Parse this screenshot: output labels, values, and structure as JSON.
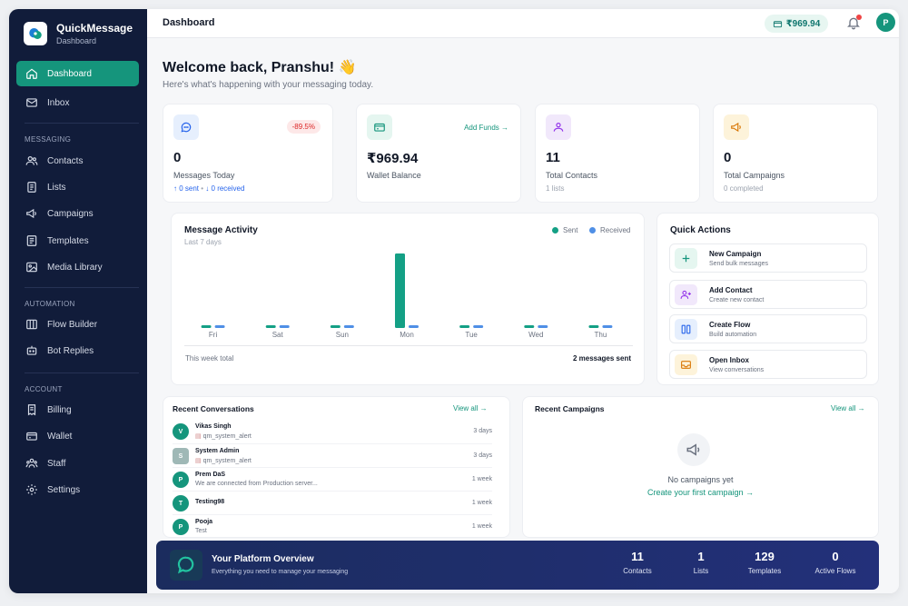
{
  "brand": {
    "name": "QuickMessage",
    "subtitle": "Dashboard"
  },
  "sidebar": {
    "items_top": [
      {
        "label": "Dashboard",
        "icon": "home-icon",
        "active": true
      },
      {
        "label": "Inbox",
        "icon": "inbox-icon"
      }
    ],
    "sections": [
      {
        "title": "MESSAGING",
        "items": [
          {
            "label": "Contacts",
            "icon": "users-icon"
          },
          {
            "label": "Lists",
            "icon": "list-icon"
          },
          {
            "label": "Campaigns",
            "icon": "megaphone-icon"
          },
          {
            "label": "Templates",
            "icon": "template-icon"
          },
          {
            "label": "Media Library",
            "icon": "image-icon"
          }
        ]
      },
      {
        "title": "AUTOMATION",
        "items": [
          {
            "label": "Flow Builder",
            "icon": "flow-icon"
          },
          {
            "label": "Bot Replies",
            "icon": "bot-icon"
          }
        ]
      },
      {
        "title": "ACCOUNT",
        "items": [
          {
            "label": "Billing",
            "icon": "billing-icon"
          },
          {
            "label": "Wallet",
            "icon": "wallet-icon"
          },
          {
            "label": "Staff",
            "icon": "staff-icon"
          },
          {
            "label": "Settings",
            "icon": "gear-icon"
          }
        ]
      }
    ]
  },
  "topbar": {
    "title": "Dashboard",
    "wallet": "₹969.94",
    "avatar": "P"
  },
  "welcome": {
    "title": "Welcome back, Pranshu! 👋",
    "subtitle": "Here's what's happening with your messaging today."
  },
  "stats": [
    {
      "value": "0",
      "label": "Messages Today",
      "sent": "↑ 0 sent",
      "separator": "•",
      "received": "↓ 0 received",
      "badge": "-89.5%",
      "icon": "chat-icon",
      "color": "#e6effd"
    },
    {
      "value": "₹969.94",
      "label": "Wallet Balance",
      "action": "Add Funds →",
      "icon": "wallet-icon",
      "color": "#e5f6f0"
    },
    {
      "value": "11",
      "label": "Total Contacts",
      "sub": "1 lists",
      "icon": "contacts-icon",
      "color": "#f1e8fb"
    },
    {
      "value": "0",
      "label": "Total Campaigns",
      "sub": "0 completed",
      "icon": "megaphone-icon",
      "color": "#fdf3da"
    }
  ],
  "activity": {
    "title": "Message Activity",
    "subtitle": "Last 7 days",
    "legend_sent": "Sent",
    "legend_received": "Received",
    "footer_left": "This week total",
    "footer_right": "2 messages sent"
  },
  "chart_data": {
    "type": "bar",
    "categories": [
      "Fri",
      "Sat",
      "Sun",
      "Mon",
      "Tue",
      "Wed",
      "Thu"
    ],
    "series": [
      {
        "name": "Sent",
        "values": [
          0,
          0,
          0,
          2,
          0,
          0,
          0
        ],
        "color": "#14a085"
      },
      {
        "name": "Received",
        "values": [
          0,
          0,
          0,
          0,
          0,
          0,
          0
        ],
        "color": "#4f8fe6"
      }
    ],
    "title": "Message Activity",
    "subtitle": "Last 7 days",
    "legend": "top-right",
    "grid": false
  },
  "quick_actions": {
    "title": "Quick Actions",
    "items": [
      {
        "title": "New Campaign",
        "sub": "Send bulk messages",
        "icon": "plus-icon",
        "bg": "#e5f6f0",
        "fg": "#15957c"
      },
      {
        "title": "Add Contact",
        "sub": "Create new contact",
        "icon": "user-plus-icon",
        "bg": "#f1e8fb",
        "fg": "#9333ea"
      },
      {
        "title": "Create Flow",
        "sub": "Build automation",
        "icon": "columns-icon",
        "bg": "#e6effd",
        "fg": "#2563eb"
      },
      {
        "title": "Open Inbox",
        "sub": "View conversations",
        "icon": "inbox-icon",
        "bg": "#fdf3da",
        "fg": "#d97706"
      }
    ]
  },
  "recent_conversations": {
    "title": "Recent Conversations",
    "view_all": "View all →",
    "rows": [
      {
        "initial": "V",
        "name": "Vikas Singh",
        "preview": "qm_system_alert",
        "time": "3 days",
        "doc": true
      },
      {
        "initial": "S",
        "name": "System Admin",
        "preview": "qm_system_alert",
        "time": "3 days",
        "doc": true
      },
      {
        "initial": "P",
        "name": "Prem DaS",
        "preview": "We are connected from Production server...",
        "time": "1 week",
        "doc": false
      },
      {
        "initial": "T",
        "name": "Testing98",
        "preview": "",
        "time": "1 week",
        "doc": false
      },
      {
        "initial": "P",
        "name": "Pooja",
        "preview": "Test",
        "time": "1 week",
        "doc": false
      }
    ]
  },
  "recent_campaigns": {
    "title": "Recent Campaigns",
    "view_all": "View all →",
    "empty": "No campaigns yet",
    "cta": "Create your first campaign →"
  },
  "overview": {
    "title": "Your Platform Overview",
    "subtitle": "Everything you need to manage your messaging",
    "stats": [
      {
        "value": "11",
        "label": "Contacts"
      },
      {
        "value": "1",
        "label": "Lists"
      },
      {
        "value": "129",
        "label": "Templates"
      },
      {
        "value": "0",
        "label": "Active Flows"
      }
    ]
  }
}
